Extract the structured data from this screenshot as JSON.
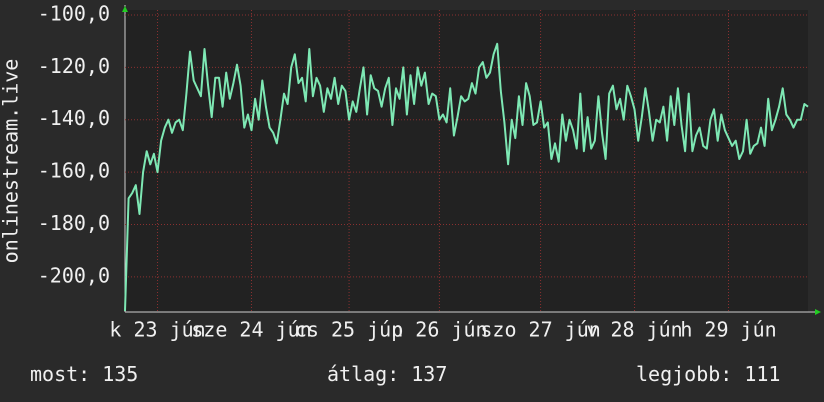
{
  "chart_data": {
    "type": "line",
    "y_label": "onlinestream.live",
    "series": [
      {
        "name": "onlinestream.live",
        "color": "#7ee8b4",
        "values": [
          -213,
          -170,
          -168,
          -165,
          -176,
          -160,
          -152,
          -157,
          -153,
          -160,
          -148,
          -143,
          -140,
          -145,
          -141,
          -140,
          -144,
          -130,
          -114,
          -125,
          -128,
          -131,
          -113,
          -127,
          -139,
          -124,
          -124,
          -135,
          -122,
          -132,
          -126,
          -119,
          -127,
          -143,
          -138,
          -144,
          -132,
          -140,
          -125,
          -135,
          -143,
          -145,
          -149,
          -140,
          -130,
          -134,
          -120,
          -115,
          -126,
          -124,
          -133,
          -113,
          -131,
          -124,
          -127,
          -137,
          -128,
          -132,
          -124,
          -134,
          -127,
          -129,
          -140,
          -133,
          -137,
          -128,
          -120,
          -138,
          -123,
          -128,
          -129,
          -135,
          -128,
          -124,
          -142,
          -128,
          -132,
          -120,
          -138,
          -123,
          -134,
          -120,
          -127,
          -122,
          -134,
          -130,
          -131,
          -140,
          -138,
          -141,
          -128,
          -146,
          -139,
          -131,
          -133,
          -132,
          -126,
          -130,
          -120,
          -118,
          -124,
          -122,
          -115,
          -111,
          -129,
          -141,
          -157,
          -140,
          -147,
          -131,
          -142,
          -126,
          -131,
          -142,
          -141,
          -133,
          -143,
          -141,
          -155,
          -149,
          -156,
          -138,
          -148,
          -140,
          -144,
          -151,
          -130,
          -152,
          -139,
          -151,
          -148,
          -131,
          -145,
          -155,
          -130,
          -127,
          -136,
          -132,
          -140,
          -127,
          -131,
          -136,
          -148,
          -139,
          -128,
          -137,
          -148,
          -140,
          -141,
          -135,
          -148,
          -131,
          -142,
          -128,
          -142,
          -152,
          -130,
          -152,
          -146,
          -143,
          -150,
          -151,
          -140,
          -136,
          -148,
          -138,
          -144,
          -147,
          -150,
          -148,
          -155,
          -152,
          -140,
          -153,
          -150,
          -149,
          -143,
          -150,
          -132,
          -144,
          -140,
          -135,
          -128,
          -138,
          -140,
          -143,
          -140,
          -140,
          -134,
          -135
        ]
      }
    ],
    "xlim": [
      0,
      189
    ],
    "xticks": [
      {
        "value": 9,
        "label": "k 23 jún"
      },
      {
        "value": 35,
        "label": "sze 24 jún"
      },
      {
        "value": 62,
        "label": "cs 25 jún"
      },
      {
        "value": 87,
        "label": "p 26 jún"
      },
      {
        "value": 115,
        "label": "szo 27 jún"
      },
      {
        "value": 141,
        "label": "v 28 jún"
      },
      {
        "value": 167,
        "label": "h 29 jún"
      }
    ],
    "ylim": [
      -213.4,
      -98.1
    ],
    "yticks": [
      {
        "value": -100,
        "label": "-100,0"
      },
      {
        "value": -120,
        "label": "-120,0"
      },
      {
        "value": -140,
        "label": "-140,0"
      },
      {
        "value": -160,
        "label": "-160,0"
      },
      {
        "value": -180,
        "label": "-180,0"
      },
      {
        "value": -200,
        "label": "-200,0"
      }
    ],
    "grid": true,
    "stats": [
      {
        "label": "most:",
        "value": 135
      },
      {
        "label": "átlag:",
        "value": 137
      },
      {
        "label": "legjobb:",
        "value": 111
      }
    ]
  }
}
